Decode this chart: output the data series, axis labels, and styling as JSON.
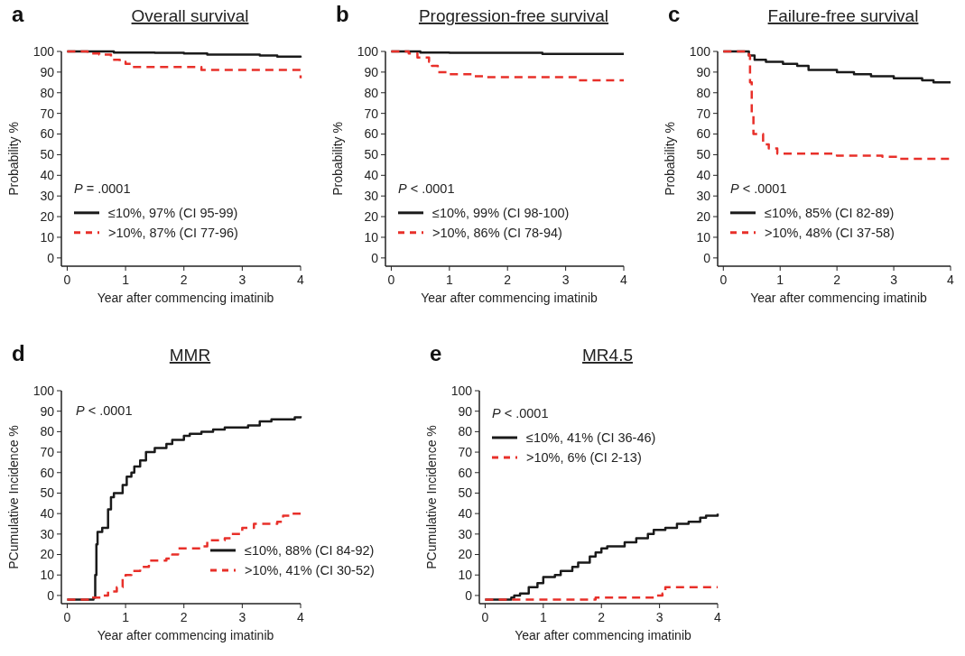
{
  "chart_data": [
    {
      "type": "step",
      "title": "Overall survival",
      "xlabel": "Year after commencing imatinib",
      "ylabel": "Probability %",
      "annotations": [
        "a",
        "P = .0001"
      ],
      "xlim": [
        -0.1,
        4
      ],
      "ylim": [
        -4,
        100
      ],
      "xticks": [
        0,
        1,
        2,
        3,
        4
      ],
      "yticks": [
        0,
        10,
        20,
        30,
        40,
        50,
        60,
        70,
        80,
        90,
        100
      ],
      "legend": "bottom left",
      "series": [
        {
          "name": "≤10%, 97% (CI 95-99)",
          "color": "#1a1a1a",
          "line_style": "solid",
          "x": [
            0,
            0.8,
            1.5,
            2,
            2.4,
            3.3,
            3.6,
            4
          ],
          "values": [
            100,
            99.5,
            99.3,
            99,
            98.5,
            98,
            97.5,
            97
          ]
        },
        {
          "name": ">10%, 87% (CI 77-96)",
          "color": "#e8302a",
          "line_style": "dashed",
          "x": [
            0,
            0.35,
            0.55,
            0.75,
            0.9,
            1.0,
            1.1,
            2.3,
            3.9,
            4
          ],
          "values": [
            100,
            99,
            98.5,
            96,
            95,
            94,
            92.5,
            91,
            91,
            87
          ]
        }
      ]
    },
    {
      "type": "step",
      "title": "Progression-free survival",
      "xlabel": "Year after commencing imatinib",
      "ylabel": "Probability %",
      "annotations": [
        "b",
        "P < .0001"
      ],
      "xlim": [
        -0.1,
        4
      ],
      "ylim": [
        -4,
        100
      ],
      "xticks": [
        0,
        1,
        2,
        3,
        4
      ],
      "yticks": [
        0,
        10,
        20,
        30,
        40,
        50,
        60,
        70,
        80,
        90,
        100
      ],
      "legend": "bottom left",
      "series": [
        {
          "name": "≤10%, 99% (CI 98-100)",
          "color": "#1a1a1a",
          "line_style": "solid",
          "x": [
            0,
            0.5,
            1,
            2.6,
            4
          ],
          "values": [
            100,
            99.5,
            99.3,
            98.8,
            98.8
          ]
        },
        {
          "name": ">10%, 86% (CI 78-94)",
          "color": "#e8302a",
          "line_style": "dashed",
          "x": [
            0,
            0.3,
            0.45,
            0.65,
            0.7,
            0.8,
            1.0,
            1.4,
            1.6,
            3.2,
            4
          ],
          "values": [
            100,
            99,
            97,
            95,
            93,
            90,
            89,
            88,
            87.5,
            86,
            86
          ]
        }
      ]
    },
    {
      "type": "step",
      "title": "Failure-free survival",
      "xlabel": "Year after commencing imatinib",
      "ylabel": "Probability %",
      "annotations": [
        "c",
        "P < .0001"
      ],
      "xlim": [
        -0.1,
        4
      ],
      "ylim": [
        -4,
        100
      ],
      "xticks": [
        0,
        1,
        2,
        3,
        4
      ],
      "yticks": [
        0,
        10,
        20,
        30,
        40,
        50,
        60,
        70,
        80,
        90,
        100
      ],
      "legend": "bottom left",
      "series": [
        {
          "name": "≤10%, 85% (CI 82-89)",
          "color": "#1a1a1a",
          "line_style": "solid",
          "x": [
            0,
            0.45,
            0.55,
            0.75,
            1.05,
            1.3,
            1.5,
            2,
            2.3,
            2.6,
            3,
            3.5,
            3.7,
            4
          ],
          "values": [
            100,
            98,
            96,
            95,
            94,
            93,
            91,
            90,
            89,
            88,
            87,
            86,
            85,
            85
          ]
        },
        {
          "name": ">10%, 48% (CI 37-58)",
          "color": "#e8302a",
          "line_style": "dashed",
          "x": [
            0,
            0.45,
            0.47,
            0.5,
            0.53,
            0.7,
            0.8,
            0.95,
            2,
            2.8,
            3.1,
            4
          ],
          "values": [
            100,
            98,
            85,
            70,
            60,
            55,
            53,
            50.5,
            49.5,
            49,
            48,
            48
          ]
        }
      ]
    },
    {
      "type": "step",
      "title": "MMR",
      "xlabel": "Year after commencing imatinib",
      "ylabel": "PCumulative Incidence %",
      "annotations": [
        "d",
        "P < .0001"
      ],
      "xlim": [
        -0.1,
        4
      ],
      "ylim": [
        -4,
        100
      ],
      "xticks": [
        0,
        1,
        2,
        3,
        4
      ],
      "yticks": [
        0,
        10,
        20,
        30,
        40,
        50,
        60,
        70,
        80,
        90,
        100
      ],
      "legend": "bottom right",
      "series": [
        {
          "name": "≤10%, 88% (CI 84-92)",
          "color": "#1a1a1a",
          "line_style": "solid",
          "x": [
            0,
            0.45,
            0.48,
            0.5,
            0.52,
            0.6,
            0.7,
            0.75,
            0.8,
            0.95,
            1.02,
            1.1,
            1.15,
            1.25,
            1.35,
            1.5,
            1.7,
            1.8,
            2,
            2.1,
            2.3,
            2.5,
            2.7,
            3.1,
            3.3,
            3.5,
            3.9,
            4
          ],
          "values": [
            -2,
            -1,
            10,
            25,
            31,
            33,
            42,
            48,
            50,
            54,
            58,
            60,
            63,
            66,
            70,
            72,
            74,
            76,
            78,
            79,
            80,
            81,
            82,
            83,
            85,
            86,
            87,
            87.5
          ]
        },
        {
          "name": ">10%, 41% (CI 30-52)",
          "color": "#e8302a",
          "line_style": "dashed",
          "x": [
            0,
            0.4,
            0.6,
            0.7,
            0.85,
            0.95,
            1,
            1.1,
            1.25,
            1.4,
            1.7,
            1.8,
            1.9,
            2.3,
            2.4,
            2.7,
            2.8,
            3,
            3.2,
            3.6,
            3.7,
            3.85,
            4
          ],
          "values": [
            -2,
            -1,
            0,
            2,
            4,
            9,
            10,
            12,
            14,
            17,
            18,
            20,
            23,
            24,
            27,
            28,
            30,
            33,
            35,
            36,
            39,
            40,
            40
          ]
        }
      ]
    },
    {
      "type": "step",
      "title": "MR4.5",
      "xlabel": "Year after commencing imatinib",
      "ylabel": "PCumulative Incidence %",
      "annotations": [
        "e",
        "P < .0001"
      ],
      "xlim": [
        -0.1,
        4
      ],
      "ylim": [
        -4,
        100
      ],
      "xticks": [
        0,
        1,
        2,
        3,
        4
      ],
      "yticks": [
        0,
        10,
        20,
        30,
        40,
        50,
        60,
        70,
        80,
        90,
        100
      ],
      "legend": "top left",
      "series": [
        {
          "name": "≤10%, 41% (CI 36-46)",
          "color": "#1a1a1a",
          "line_style": "solid",
          "x": [
            0,
            0.45,
            0.5,
            0.6,
            0.75,
            0.9,
            1,
            1.2,
            1.3,
            1.5,
            1.6,
            1.8,
            1.9,
            2,
            2.1,
            2.4,
            2.6,
            2.8,
            2.9,
            3.1,
            3.3,
            3.5,
            3.7,
            3.8,
            4
          ],
          "values": [
            -2,
            -1,
            0,
            1,
            4,
            6,
            9,
            10,
            12,
            14,
            16,
            19,
            21,
            23,
            24,
            26,
            28,
            30,
            32,
            33,
            35,
            36,
            38,
            39,
            40
          ]
        },
        {
          "name": ">10%, 6% (CI 2-13)",
          "color": "#e8302a",
          "line_style": "dashed",
          "x": [
            0,
            1.9,
            2.8,
            2.9,
            3.05,
            3.1,
            4
          ],
          "values": [
            -2,
            -1,
            -1,
            0,
            1,
            4,
            4
          ]
        }
      ]
    }
  ]
}
